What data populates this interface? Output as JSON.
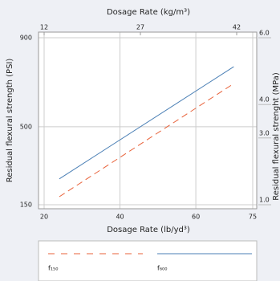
{
  "chart_data": {
    "type": "line",
    "xlabel": "Dosage Rate (lb/yd³)",
    "x2label": "Dosage Rate (kg/m³)",
    "ylabel": "Residual flexural strength (PSI)",
    "y2label": "Residual flexural strenght (MPa)",
    "x": [
      24,
      70
    ],
    "xlim": [
      20,
      75
    ],
    "xticks": [
      20,
      40,
      60,
      75
    ],
    "x2lim": [
      12,
      44.5
    ],
    "x2ticks": [
      12,
      27,
      42
    ],
    "ylim": [
      150,
      900
    ],
    "yticks": [
      150,
      500,
      900
    ],
    "y2lim": [
      1.0,
      6.0
    ],
    "y2ticks": [
      {
        "value": 1.0,
        "label": "1.0"
      },
      {
        "value": 3.0,
        "label": "3.0"
      },
      {
        "value": 4.0,
        "label": "4.0"
      },
      {
        "value": 6.0,
        "label": "6.0"
      }
    ],
    "grid": true,
    "series": [
      {
        "name": "f₁₅₀",
        "color": "#e8623a",
        "dashed": true,
        "values": [
          186,
          694
        ]
      },
      {
        "name": "f₆₀₀",
        "color": "#4a7fb5",
        "dashed": false,
        "values": [
          266,
          770
        ]
      }
    ]
  }
}
